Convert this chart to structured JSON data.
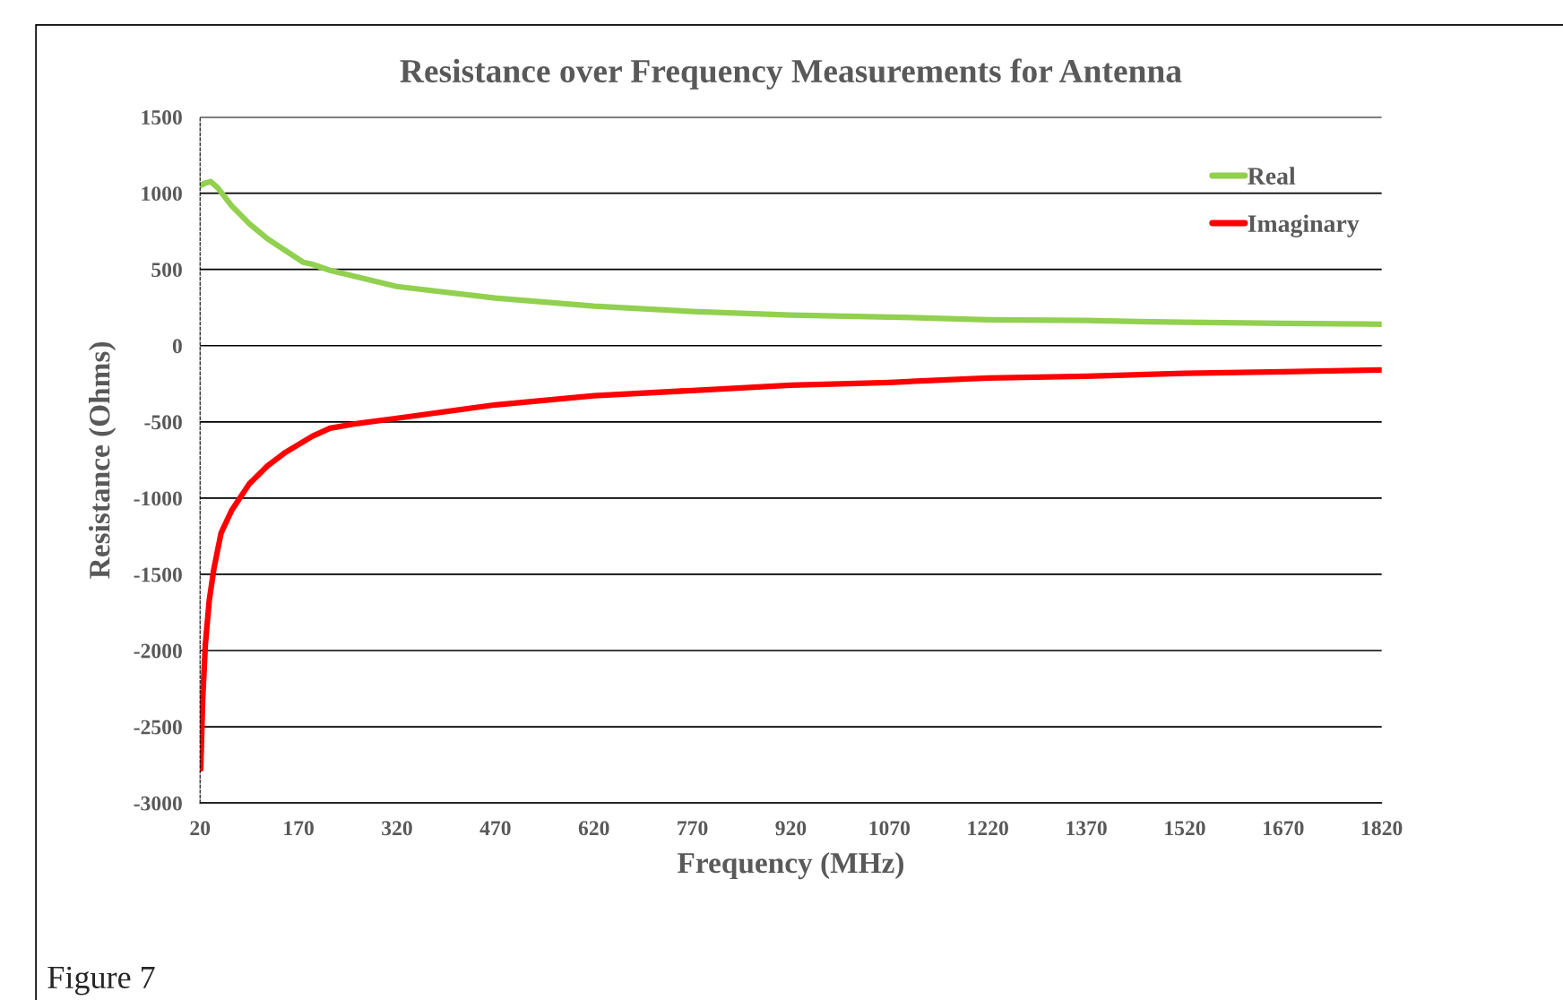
{
  "chart_data": {
    "type": "line",
    "title": "Resistance over Frequency Measurements for Antenna",
    "xlabel": "Frequency (MHz)",
    "ylabel": "Resistance (Ohms)",
    "xlim": [
      20,
      1820
    ],
    "xticks": [
      20,
      170,
      320,
      470,
      620,
      770,
      920,
      1070,
      1220,
      1370,
      1520,
      1670,
      1820
    ],
    "ylim": [
      -3000,
      1500
    ],
    "yticks": [
      -3000,
      -2500,
      -2000,
      -1500,
      -1000,
      -500,
      0,
      500,
      1000,
      1500
    ],
    "grid": "y",
    "legend": "top right",
    "marker": "none",
    "line_style": "solid",
    "annotations": [
      "Figure 7"
    ],
    "series": [
      {
        "name": "Real",
        "color": "#92d050",
        "x": [
          20,
          27,
          36,
          47,
          68,
          95,
          123,
          150,
          177,
          190,
          218,
          320,
          470,
          620,
          770,
          920,
          1070,
          1220,
          1370,
          1520,
          1670,
          1820
        ],
        "values": [
          1050,
          1065,
          1076,
          1035,
          918,
          800,
          700,
          624,
          547,
          535,
          494,
          388,
          312,
          259,
          224,
          200,
          188,
          170,
          165,
          153,
          147,
          141
        ]
      },
      {
        "name": "Imaginary",
        "color": "#ff0000",
        "x": [
          21,
          24,
          28,
          34,
          41,
          52,
          68,
          95,
          123,
          150,
          191,
          218,
          260,
          320,
          470,
          620,
          770,
          920,
          1070,
          1220,
          1370,
          1520,
          1670,
          1820
        ],
        "values": [
          -2776,
          -2318,
          -1965,
          -1671,
          -1465,
          -1229,
          -1082,
          -906,
          -788,
          -700,
          -594,
          -541,
          -510,
          -476,
          -388,
          -329,
          -294,
          -259,
          -241,
          -212,
          -200,
          -182,
          -171,
          -159
        ]
      }
    ]
  }
}
